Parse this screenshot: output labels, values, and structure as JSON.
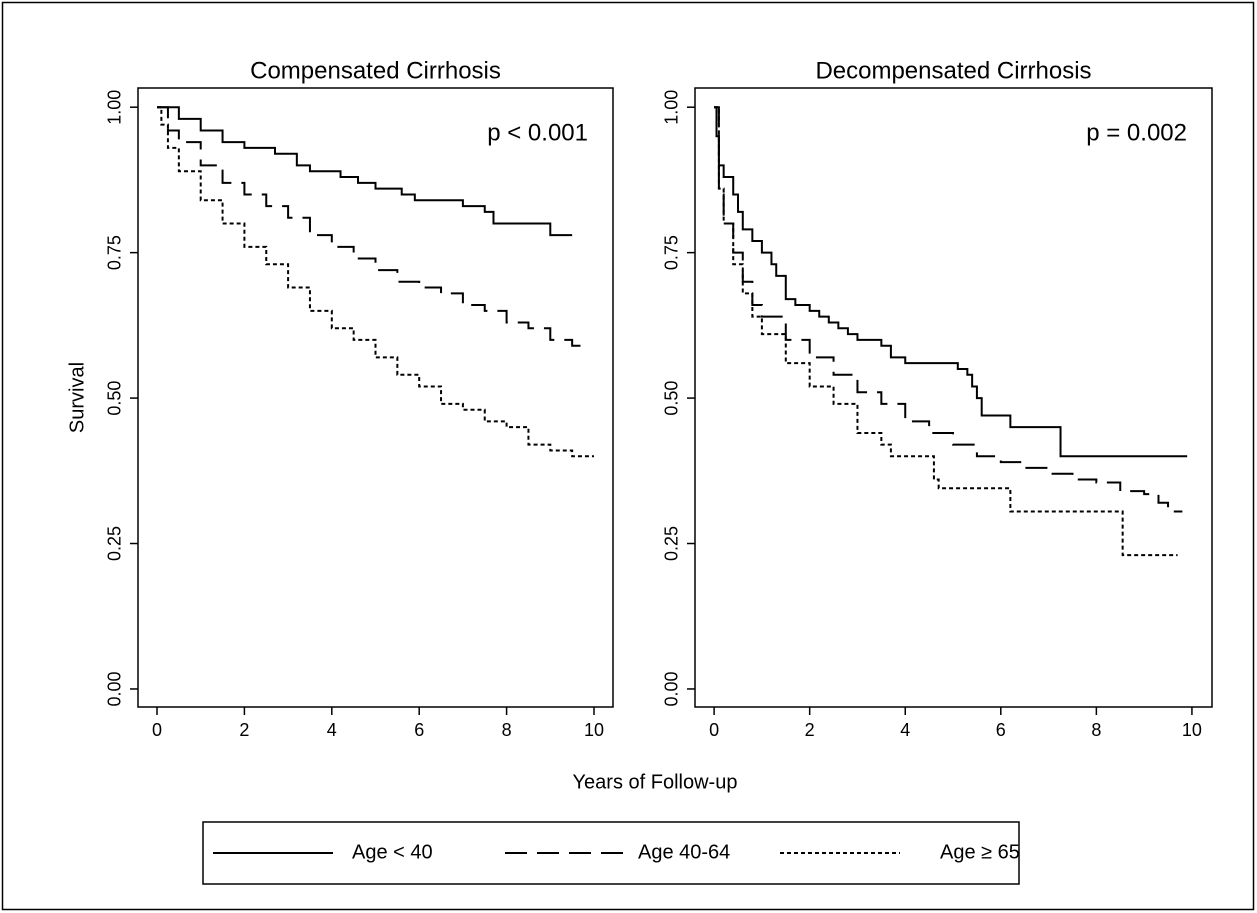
{
  "xlabel": "Years of Follow-up",
  "chart_data": [
    {
      "type": "line",
      "drawstyle": "steps-post",
      "title": "Compensated Cirrhosis",
      "ylabel": "Survival",
      "annotation": "p < 0.001",
      "xlim": [
        -0.435,
        10.435
      ],
      "ylim": [
        -0.031,
        1.033
      ],
      "xticks": [
        0,
        2,
        4,
        6,
        8,
        10
      ],
      "yticks": [
        {
          "value": 0,
          "label": "0.00"
        },
        {
          "value": 0.25,
          "label": "0.25"
        },
        {
          "value": 0.5,
          "label": "0.50"
        },
        {
          "value": 0.75,
          "label": "0.75"
        },
        {
          "value": 1,
          "label": "1.00"
        }
      ],
      "series": [
        {
          "name": "Age < 40",
          "color": "#000000",
          "dash": "solid",
          "x": [
            0,
            0.5,
            1,
            1.5,
            2,
            2.7,
            3.2,
            3.5,
            4.2,
            4.6,
            5,
            5.6,
            5.9,
            7,
            7.5,
            7.7,
            9.0,
            9.5
          ],
          "values": [
            1,
            0.98,
            0.96,
            0.94,
            0.93,
            0.92,
            0.9,
            0.89,
            0.88,
            0.87,
            0.86,
            0.85,
            0.84,
            0.83,
            0.82,
            0.8,
            0.78,
            0.78
          ]
        },
        {
          "name": "Age 40-64",
          "color": "#000000",
          "dash": "dashed",
          "x": [
            0,
            0.25,
            0.5,
            1,
            1.5,
            2,
            2.5,
            3,
            3.5,
            4,
            4.5,
            5,
            5.5,
            6,
            6.5,
            7,
            7.5,
            8,
            8.5,
            9,
            9.5,
            9.9
          ],
          "values": [
            1,
            0.96,
            0.94,
            0.9,
            0.87,
            0.85,
            0.83,
            0.81,
            0.78,
            0.76,
            0.74,
            0.72,
            0.7,
            0.69,
            0.68,
            0.66,
            0.65,
            0.63,
            0.62,
            0.6,
            0.59,
            0.59
          ]
        },
        {
          "name": "Age ≥ 65",
          "color": "#000000",
          "dash": "dotted",
          "x": [
            0,
            0.1,
            0.25,
            0.5,
            1,
            1.5,
            2,
            2.5,
            3,
            3.5,
            4,
            4.5,
            5,
            5.5,
            6,
            6.5,
            7,
            7.5,
            8,
            8.5,
            9,
            9.5,
            10
          ],
          "values": [
            1,
            0.97,
            0.93,
            0.89,
            0.84,
            0.8,
            0.76,
            0.73,
            0.69,
            0.65,
            0.62,
            0.6,
            0.57,
            0.54,
            0.52,
            0.49,
            0.48,
            0.46,
            0.45,
            0.42,
            0.41,
            0.4,
            0.4
          ]
        }
      ]
    },
    {
      "type": "line",
      "drawstyle": "steps-post",
      "title": "Decompensated Cirrhosis",
      "annotation": "p = 0.002",
      "xlim": [
        -0.4,
        10.42
      ],
      "ylim": [
        -0.031,
        1.033
      ],
      "xticks": [
        0,
        2,
        4,
        6,
        8,
        10
      ],
      "yticks": [
        {
          "value": 0,
          "label": "0.00"
        },
        {
          "value": 0.25,
          "label": "0.25"
        },
        {
          "value": 0.5,
          "label": "0.50"
        },
        {
          "value": 0.75,
          "label": "0.75"
        },
        {
          "value": 1,
          "label": "1.00"
        }
      ],
      "series": [
        {
          "color": "#000000",
          "dash": "solid",
          "x": [
            0,
            0.05,
            0.1,
            0.2,
            0.4,
            0.5,
            0.6,
            0.8,
            1,
            1.2,
            1.3,
            1.5,
            1.7,
            2,
            2.2,
            2.4,
            2.6,
            2.8,
            3,
            3.5,
            3.7,
            4,
            5,
            5.1,
            5.3,
            5.4,
            5.5,
            5.6,
            6,
            6.2,
            7.2,
            7.25,
            9.9
          ],
          "values": [
            1,
            0.95,
            0.9,
            0.88,
            0.85,
            0.82,
            0.79,
            0.77,
            0.75,
            0.73,
            0.71,
            0.67,
            0.66,
            0.65,
            0.64,
            0.63,
            0.62,
            0.61,
            0.6,
            0.59,
            0.57,
            0.56,
            0.56,
            0.55,
            0.54,
            0.52,
            0.5,
            0.47,
            0.47,
            0.45,
            0.45,
            0.4,
            0.4
          ]
        },
        {
          "color": "#000000",
          "dash": "dashed",
          "x": [
            0,
            0.1,
            0.2,
            0.4,
            0.6,
            0.8,
            1,
            1.5,
            2,
            2.5,
            3,
            3.5,
            4,
            4.5,
            5,
            5.5,
            6,
            6.5,
            7,
            7.5,
            8,
            8.5,
            9,
            9.3,
            9.5,
            9.8
          ],
          "values": [
            1,
            0.85,
            0.8,
            0.75,
            0.7,
            0.66,
            0.64,
            0.6,
            0.57,
            0.54,
            0.51,
            0.49,
            0.46,
            0.44,
            0.42,
            0.4,
            0.39,
            0.38,
            0.37,
            0.36,
            0.355,
            0.34,
            0.335,
            0.32,
            0.305,
            0.305
          ]
        },
        {
          "color": "#000000",
          "dash": "dotted",
          "x": [
            0,
            0.1,
            0.2,
            0.4,
            0.6,
            0.8,
            1,
            1.5,
            2,
            2.5,
            3,
            3.5,
            3.7,
            4.2,
            4.6,
            4.7,
            6.1,
            6.2,
            8.5,
            8.55,
            9.7
          ],
          "values": [
            1,
            0.86,
            0.8,
            0.73,
            0.68,
            0.64,
            0.61,
            0.56,
            0.52,
            0.49,
            0.44,
            0.42,
            0.4,
            0.4,
            0.36,
            0.345,
            0.345,
            0.305,
            0.305,
            0.23,
            0.23
          ]
        }
      ]
    }
  ]
}
